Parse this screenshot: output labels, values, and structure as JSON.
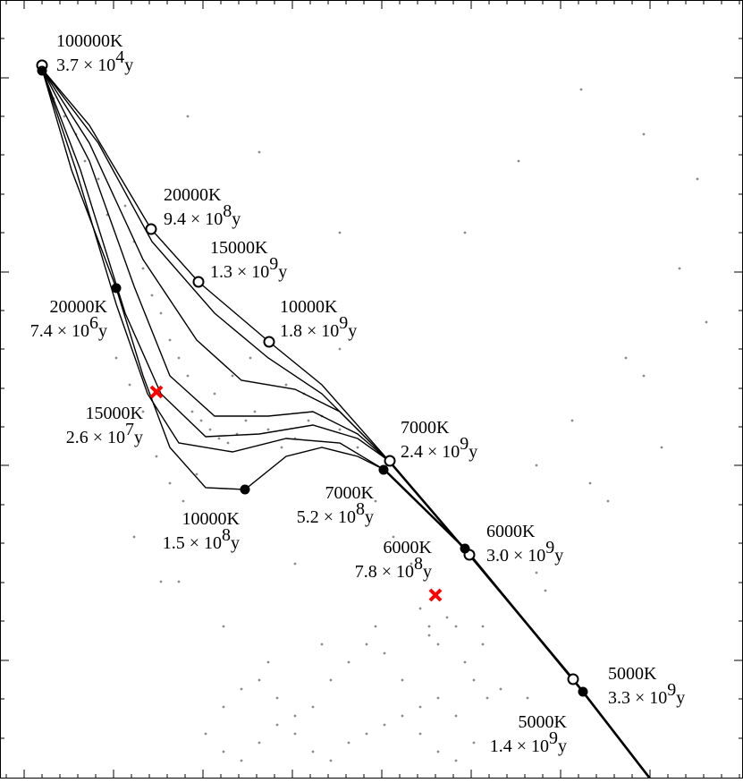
{
  "chart_data": {
    "type": "scatter",
    "xlim": [
      0,
      831
    ],
    "ylim": [
      0,
      870
    ],
    "y_inverted": true,
    "xticks": [
      27,
      127,
      227,
      327,
      427,
      527,
      627,
      727
    ],
    "x_minor_ticks": [
      7,
      47,
      67,
      87,
      107,
      147,
      167,
      187,
      207,
      247,
      267,
      287,
      307,
      347,
      367,
      387,
      407,
      447,
      467,
      487,
      507,
      547,
      567,
      587,
      607,
      647,
      667,
      687,
      707,
      747,
      767,
      787,
      807,
      827
    ],
    "yticks": [
      87,
      304,
      520,
      738
    ],
    "y_minor_ticks": [
      0,
      43,
      130,
      173,
      217,
      260,
      347,
      390,
      434,
      477,
      564,
      607,
      651,
      694,
      781,
      825
    ],
    "scatter": {
      "color": "#8c8c8c",
      "x": [
        60,
        72,
        85,
        95,
        110,
        120,
        140,
        150,
        160,
        170,
        180,
        190,
        200,
        210,
        215,
        225,
        235,
        245,
        255,
        265,
        275,
        285,
        300,
        315,
        330,
        345,
        360,
        380,
        400,
        130,
        145,
        160,
        175,
        190,
        205,
        220,
        240,
        260,
        280,
        300,
        320,
        340,
        380,
        420,
        440,
        460,
        470,
        480,
        490,
        500,
        510,
        520,
        530,
        545,
        560,
        250,
        270,
        290,
        310,
        330,
        350,
        370,
        390,
        410,
        430,
        450,
        470,
        490,
        510,
        230,
        250,
        270,
        290,
        310,
        330,
        350,
        370,
        390,
        410,
        430,
        450,
        470,
        490,
        510,
        530,
        550,
        570,
        590,
        300,
        360,
        420,
        480,
        540,
        200,
        560,
        600,
        640,
        700,
        760,
        780,
        720,
        650,
        580,
        520,
        380,
        290,
        210,
        600,
        660,
        720,
        790,
        150,
        180,
        250,
        330,
        540,
        610,
        680,
        740
      ],
      "y": [
        110,
        130,
        150,
        180,
        200,
        240,
        230,
        270,
        300,
        330,
        350,
        380,
        400,
        420,
        460,
        470,
        480,
        490,
        495,
        485,
        470,
        460,
        480,
        500,
        490,
        470,
        465,
        480,
        500,
        400,
        430,
        460,
        510,
        540,
        560,
        530,
        440,
        420,
        400,
        380,
        430,
        440,
        390,
        560,
        600,
        630,
        680,
        700,
        720,
        690,
        700,
        740,
        760,
        780,
        770,
        790,
        770,
        760,
        780,
        800,
        790,
        760,
        740,
        720,
        730,
        760,
        790,
        780,
        800,
        820,
        840,
        850,
        830,
        810,
        820,
        840,
        850,
        830,
        820,
        810,
        800,
        820,
        840,
        850,
        830,
        810,
        800,
        780,
        740,
        720,
        700,
        710,
        720,
        650,
        620,
        520,
        470,
        400,
        300,
        200,
        150,
        100,
        180,
        260,
        260,
        170,
        130,
        640,
        540,
        420,
        360,
        600,
        650,
        700,
        630,
        700,
        660,
        560,
        500
      ]
    },
    "tracks": {
      "color": "#000000",
      "lines": [
        {
          "x": [
            47,
            100,
            169,
            222,
            301,
            360,
            435
          ],
          "y": [
            77,
            140,
            256,
            315,
            382,
            430,
            515
          ]
        },
        {
          "x": [
            47,
            110,
            170,
            240,
            300,
            360,
            435
          ],
          "y": [
            77,
            160,
            270,
            350,
            400,
            440,
            515
          ]
        },
        {
          "x": [
            47,
            100,
            160,
            220,
            270,
            330,
            380,
            435
          ],
          "y": [
            77,
            160,
            290,
            380,
            425,
            435,
            460,
            515
          ]
        },
        {
          "x": [
            47,
            100,
            150,
            190,
            240,
            300,
            350,
            400,
            435
          ],
          "y": [
            77,
            180,
            320,
            420,
            465,
            465,
            460,
            485,
            515
          ]
        },
        {
          "x": [
            47,
            90,
            140,
            180,
            230,
            290,
            350,
            400,
            435
          ],
          "y": [
            77,
            190,
            350,
            440,
            488,
            485,
            475,
            490,
            515
          ]
        },
        {
          "x": [
            47,
            85,
            130,
            165,
            200,
            260,
            320,
            380,
            430
          ],
          "y": [
            77,
            190,
            340,
            440,
            495,
            505,
            490,
            495,
            525
          ]
        },
        {
          "x": [
            47,
            80,
            130,
            160,
            190,
            230,
            274,
            320,
            360,
            400,
            430
          ],
          "y": [
            77,
            190,
            322,
            420,
            500,
            545,
            547,
            510,
            500,
            510,
            525
          ]
        },
        {
          "x": [
            430,
            520,
            652,
            727
          ],
          "y": [
            525,
            613,
            773,
            870
          ]
        },
        {
          "x": [
            435,
            525,
            641,
            727
          ],
          "y": [
            515,
            620,
            759,
            870
          ]
        }
      ]
    },
    "markers": {
      "open": {
        "x": [
          47,
          169,
          222,
          301,
          436,
          525,
          641
        ],
        "y": [
          73,
          256,
          315,
          382,
          515,
          620,
          759
        ]
      },
      "filled": {
        "x": [
          47,
          130,
          274,
          429,
          520,
          652
        ],
        "y": [
          79,
          322,
          547,
          525,
          613,
          773
        ]
      },
      "cross": {
        "color": "#ff0000",
        "x": [
          175,
          487
        ],
        "y": [
          438,
          665
        ]
      }
    },
    "annotations": [
      {
        "temperature": "100000K",
        "mantissa": "3.7 × 10",
        "exponent": "4",
        "unit": "y"
      },
      {
        "temperature": "20000K",
        "mantissa": "9.4 × 10",
        "exponent": "8",
        "unit": "y"
      },
      {
        "temperature": "15000K",
        "mantissa": "1.3 × 10",
        "exponent": "9",
        "unit": "y"
      },
      {
        "temperature": "10000K",
        "mantissa": "1.8 × 10",
        "exponent": "9",
        "unit": "y"
      },
      {
        "temperature": "7000K",
        "mantissa": "2.4 × 10",
        "exponent": "9",
        "unit": "y"
      },
      {
        "temperature": "6000K",
        "mantissa": "3.0 × 10",
        "exponent": "9",
        "unit": "y"
      },
      {
        "temperature": "5000K",
        "mantissa": "3.3 × 10",
        "exponent": "9",
        "unit": "y"
      },
      {
        "temperature": "20000K",
        "mantissa": "7.4 × 10",
        "exponent": "6",
        "unit": "y"
      },
      {
        "temperature": "15000K",
        "mantissa": "2.6 × 10",
        "exponent": "7",
        "unit": "y"
      },
      {
        "temperature": "10000K",
        "mantissa": "1.5 × 10",
        "exponent": "8",
        "unit": "y"
      },
      {
        "temperature": "7000K",
        "mantissa": "5.2 × 10",
        "exponent": "8",
        "unit": "y"
      },
      {
        "temperature": "6000K",
        "mantissa": "7.8 × 10",
        "exponent": "8",
        "unit": "y"
      },
      {
        "temperature": "5000K",
        "mantissa": "1.4 × 10",
        "exponent": "9",
        "unit": "y"
      }
    ]
  }
}
